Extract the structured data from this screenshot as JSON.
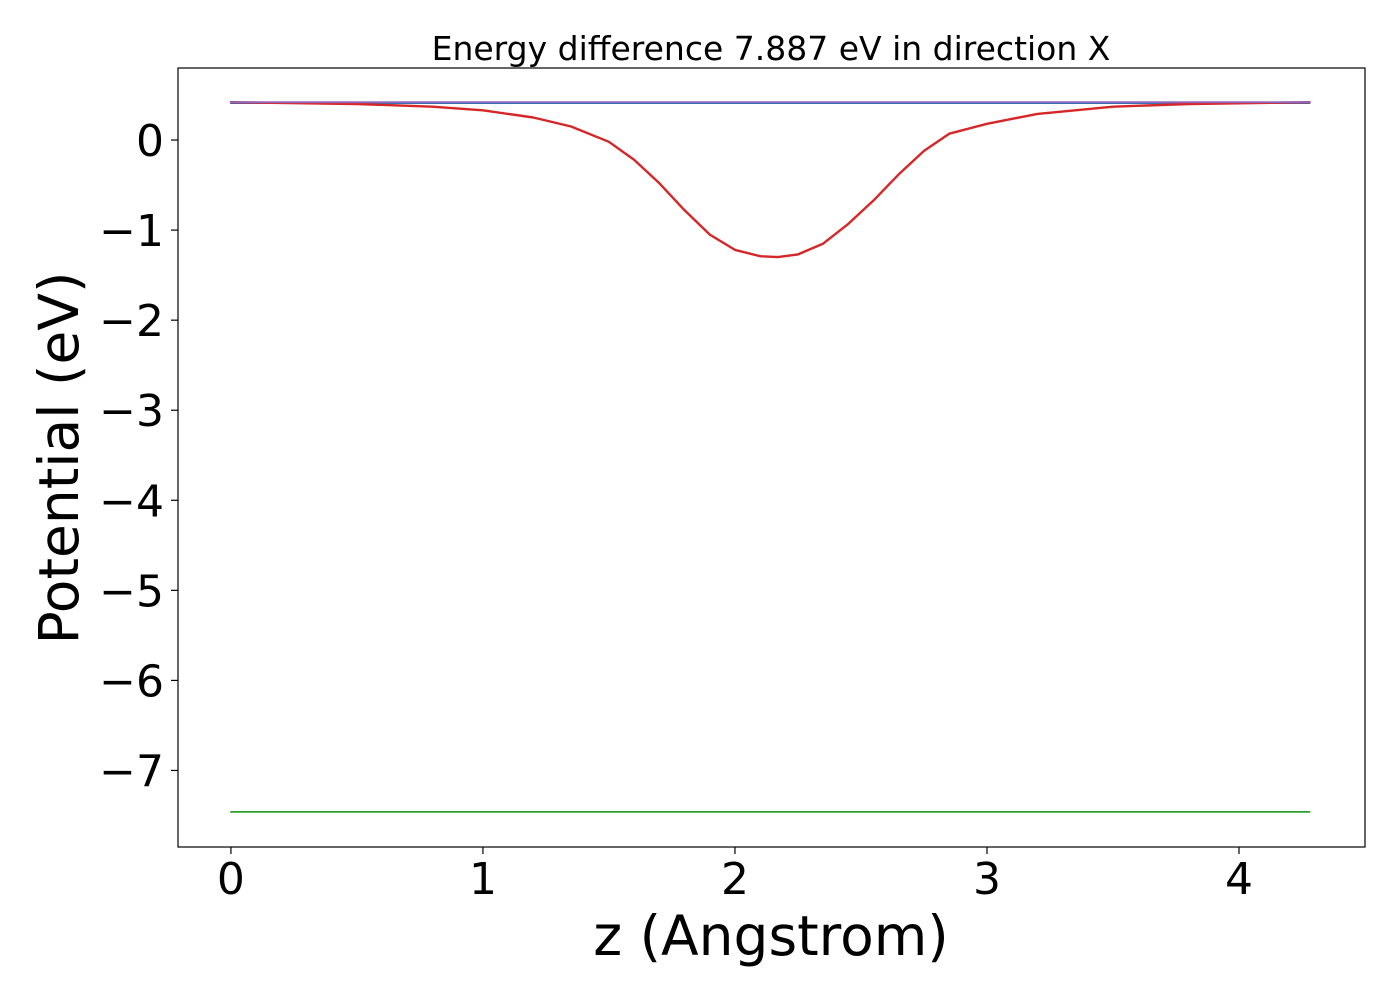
{
  "chart_data": {
    "type": "line",
    "title": "Energy difference 7.887 eV in direction X",
    "xlabel": "z (Angstrom)",
    "ylabel": "Potential (eV)",
    "xlim": [
      -0.21,
      4.5
    ],
    "ylim": [
      -7.85,
      0.8
    ],
    "xticks": [
      0,
      1,
      2,
      3,
      4
    ],
    "xtick_labels": [
      "0",
      "1",
      "2",
      "3",
      "4"
    ],
    "yticks": [
      0,
      -1,
      -2,
      -3,
      -4,
      -5,
      -6,
      -7
    ],
    "ytick_labels": [
      "0",
      "−1",
      "−2",
      "−3",
      "−4",
      "−5",
      "−6",
      "−7"
    ],
    "grid": false,
    "series": [
      {
        "color": "#1f77b4",
        "x": [
          0,
          4.28
        ],
        "y": [
          0.41,
          0.41
        ]
      },
      {
        "color": "#d62728",
        "x": [
          0,
          0.5,
          0.8,
          1.0,
          1.2,
          1.35,
          1.5,
          1.6,
          1.7,
          1.8,
          1.9,
          2.0,
          2.1,
          2.17,
          2.25,
          2.35,
          2.45,
          2.55,
          2.65,
          2.75,
          2.85,
          3.0,
          3.2,
          3.5,
          3.8,
          4.28
        ],
        "y": [
          0.42,
          0.4,
          0.37,
          0.33,
          0.25,
          0.15,
          -0.02,
          -0.22,
          -0.48,
          -0.78,
          -1.05,
          -1.22,
          -1.29,
          -1.3,
          -1.27,
          -1.15,
          -0.93,
          -0.67,
          -0.38,
          -0.12,
          0.07,
          0.18,
          0.29,
          0.37,
          0.4,
          0.42
        ]
      },
      {
        "color": "#2ca02c",
        "x": [
          0,
          4.28
        ],
        "y": [
          -7.46,
          -7.46
        ]
      },
      {
        "color": "#9467bd",
        "x": [
          0,
          4.28
        ],
        "y": [
          0.42,
          0.42
        ]
      }
    ]
  }
}
